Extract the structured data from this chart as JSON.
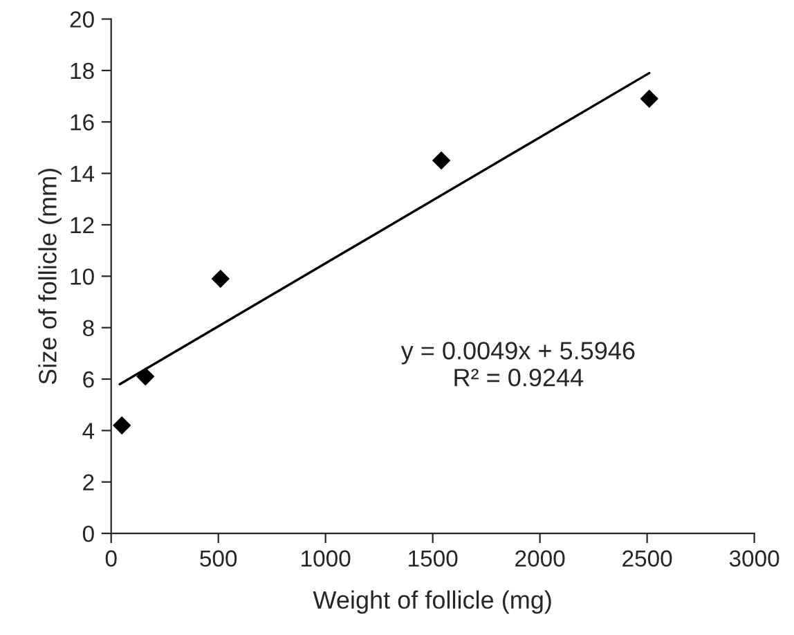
{
  "chart_data": {
    "type": "scatter",
    "xlabel": "Weight of follicle (mg)",
    "ylabel": "Size of follicle (mm)",
    "series": [
      {
        "color": "#000000",
        "marker": "diamond",
        "x": [
          50,
          160,
          510,
          1540,
          2510
        ],
        "values": [
          4.2,
          6.1,
          9.9,
          14.5,
          16.9
        ]
      },
      {
        "type": "line",
        "color": "#000000",
        "marker": "none",
        "x": [
          40,
          2510
        ],
        "values": [
          5.8,
          17.9
        ]
      }
    ],
    "xlim": [
      0,
      3000
    ],
    "xticks": [
      0,
      500,
      1000,
      1500,
      2000,
      2500,
      3000
    ],
    "ylim": [
      0,
      20
    ],
    "yticks": [
      0,
      2,
      4,
      6,
      8,
      10,
      12,
      14,
      16,
      18,
      20
    ],
    "grid": false,
    "legend": false,
    "annotations": [
      "y = 0.0049x + 5.5946\nR² = 0.9244"
    ]
  }
}
